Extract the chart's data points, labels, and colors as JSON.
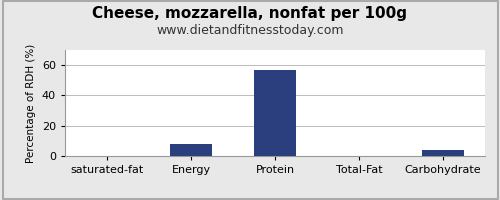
{
  "title": "Cheese, mozzarella, nonfat per 100g",
  "subtitle": "www.dietandfitnesstoday.com",
  "categories": [
    "saturated-fat",
    "Energy",
    "Protein",
    "Total-Fat",
    "Carbohydrate"
  ],
  "values": [
    0.3,
    8,
    57,
    0.2,
    4
  ],
  "bar_color": "#2b3f7e",
  "ylabel": "Percentage of RDH (%)",
  "ylim": [
    0,
    70
  ],
  "yticks": [
    0,
    20,
    40,
    60
  ],
  "background_color": "#e8e8e8",
  "plot_bg_color": "#ffffff",
  "title_fontsize": 11,
  "subtitle_fontsize": 9,
  "tick_fontsize": 8,
  "ylabel_fontsize": 7.5
}
